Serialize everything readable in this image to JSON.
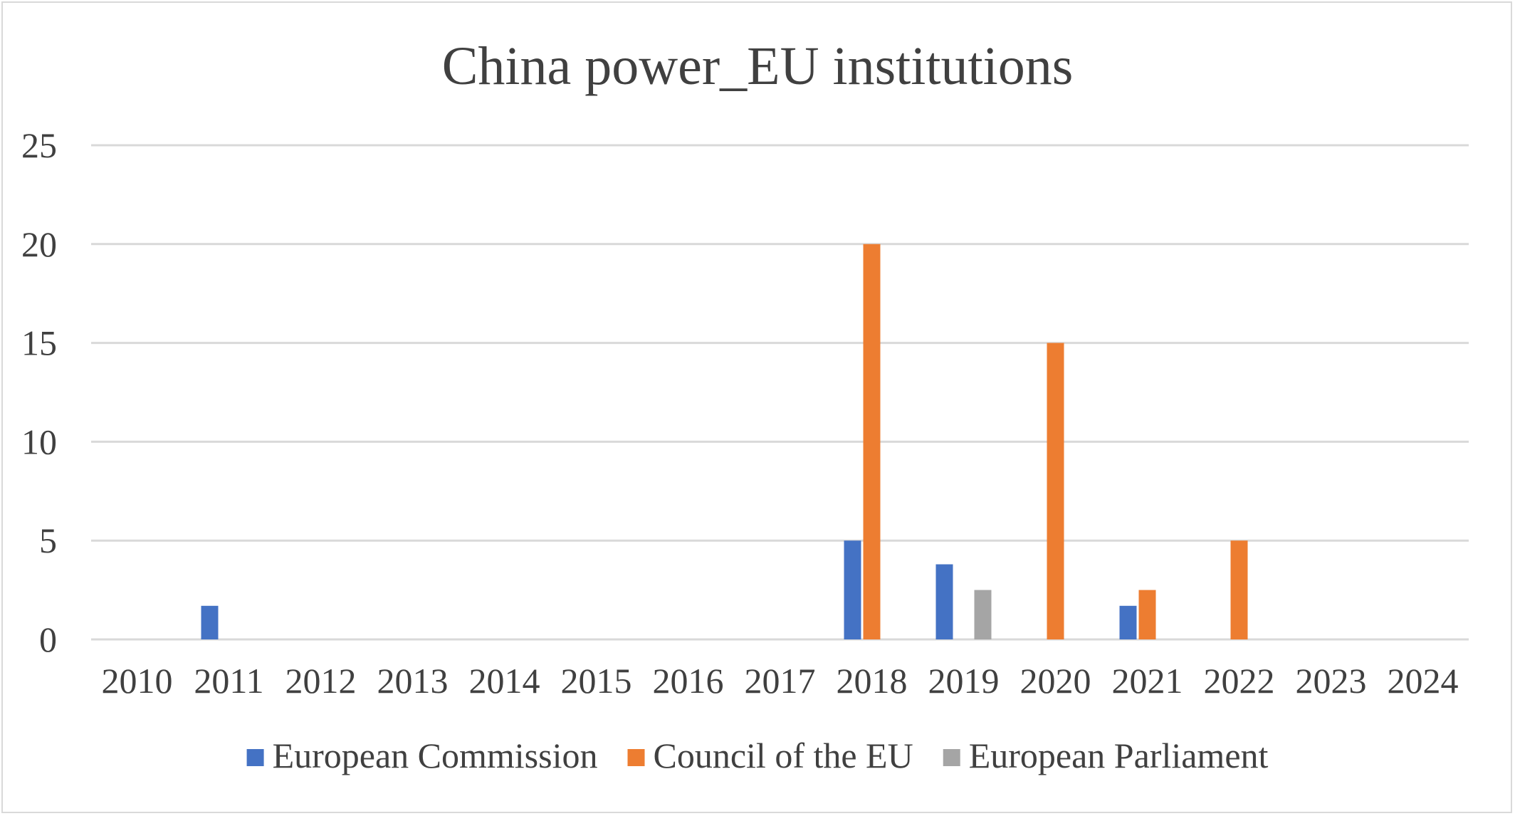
{
  "chart_data": {
    "type": "bar",
    "title": "China power_EU institutions",
    "xlabel": "",
    "ylabel": "",
    "categories": [
      "2010",
      "2011",
      "2012",
      "2013",
      "2014",
      "2015",
      "2016",
      "2017",
      "2018",
      "2019",
      "2020",
      "2021",
      "2022",
      "2023",
      "2024"
    ],
    "ylim": [
      0,
      25
    ],
    "yticks": [
      "0",
      "5",
      "10",
      "15",
      "20",
      "25"
    ],
    "grid": true,
    "legend_position": "bottom",
    "series": [
      {
        "name": "European Commission",
        "color": "#4472c4",
        "values": [
          0,
          1.7,
          0,
          0,
          0,
          0,
          0,
          0,
          5,
          3.8,
          0,
          1.7,
          0,
          0,
          0
        ]
      },
      {
        "name": "Council of the EU",
        "color": "#ed7d31",
        "values": [
          0,
          0,
          0,
          0,
          0,
          0,
          0,
          0,
          20,
          0,
          15,
          2.5,
          5,
          0,
          0
        ]
      },
      {
        "name": "European Parliament",
        "color": "#a5a5a5",
        "values": [
          0,
          0,
          0,
          0,
          0,
          0,
          0,
          0,
          0,
          2.5,
          0,
          0,
          0,
          0,
          0
        ]
      }
    ]
  },
  "style": {
    "grid_color": "#d9d9d9",
    "text_color": "#404040",
    "border_color": "#d9d9d9"
  }
}
